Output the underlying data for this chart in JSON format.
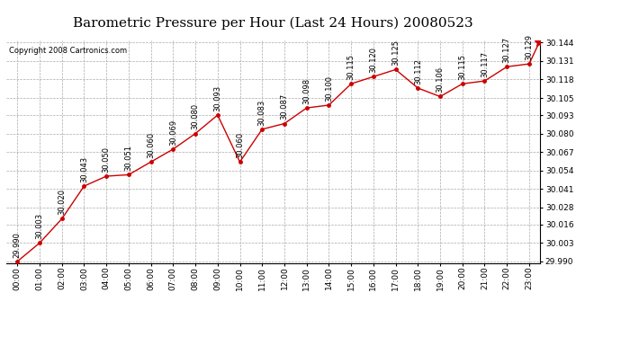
{
  "title": "Barometric Pressure per Hour (Last 24 Hours) 20080523",
  "copyright": "Copyright 2008 Cartronics.com",
  "x_labels": [
    "00:00",
    "01:00",
    "02:00",
    "03:00",
    "04:00",
    "05:00",
    "06:00",
    "07:00",
    "08:00",
    "09:00",
    "10:00",
    "11:00",
    "12:00",
    "13:00",
    "14:00",
    "15:00",
    "16:00",
    "17:00",
    "18:00",
    "19:00",
    "20:00",
    "21:00",
    "22:00",
    "23:00"
  ],
  "values": [
    29.99,
    30.003,
    30.02,
    30.043,
    30.05,
    30.051,
    30.06,
    30.069,
    30.08,
    30.093,
    30.06,
    30.083,
    30.087,
    30.098,
    30.1,
    30.115,
    30.12,
    30.125,
    30.112,
    30.106,
    30.115,
    30.117,
    30.127,
    30.129
  ],
  "star_value": 30.144,
  "ylim_min": 29.989,
  "ylim_max": 30.1455,
  "yticks": [
    29.99,
    30.003,
    30.016,
    30.028,
    30.041,
    30.054,
    30.067,
    30.08,
    30.093,
    30.105,
    30.118,
    30.131,
    30.144
  ],
  "line_color": "#cc0000",
  "bg_color": "#ffffff",
  "grid_color": "#aaaaaa",
  "title_fontsize": 11,
  "tick_fontsize": 6.5,
  "annotation_fontsize": 6.0,
  "copyright_fontsize": 6.0
}
